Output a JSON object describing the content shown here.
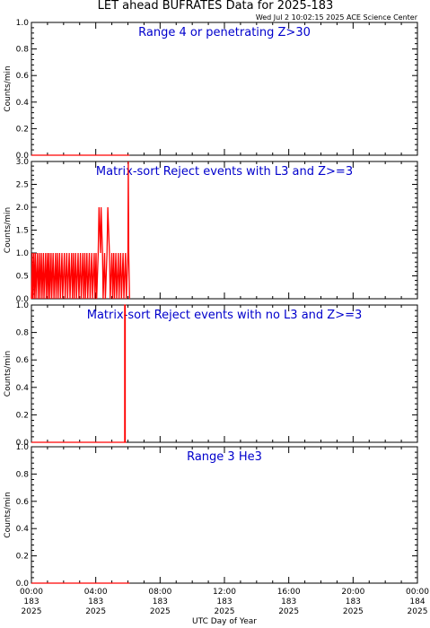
{
  "title": "LET ahead BUFRATES Data for 2025-183",
  "timestamp": "Wed Jul  2 10:02:15 2025 ACE Science Center",
  "xlabel": "UTC Day of Year",
  "colors": {
    "data": "#ff0000",
    "annotation": "#0000cc",
    "axes": "#000000"
  },
  "chart_data": [
    {
      "type": "line",
      "title": "Range 4 or   penetrating Z>30",
      "ylabel": "Counts/min",
      "ylim": [
        0,
        1
      ],
      "yticks": [
        0,
        0.2,
        0.4,
        0.6,
        0.8,
        1.0
      ],
      "ytick_labels": [
        "0.0",
        "0.2",
        "0.4",
        "0.6",
        "0.8",
        "1.0"
      ],
      "xlim_hours": [
        0,
        24
      ],
      "series": [
        {
          "x": [
            0.0,
            6.1
          ],
          "y": [
            0,
            0
          ]
        }
      ]
    },
    {
      "type": "line",
      "title": "Matrix-sort Reject events with L3 and Z>=3",
      "ylabel": "Counts/min",
      "ylim": [
        0,
        3
      ],
      "yticks": [
        0,
        0.5,
        1.0,
        1.5,
        2.0,
        2.5,
        3.0
      ],
      "ytick_labels": [
        "0.0",
        "0.5",
        "1.0",
        "1.5",
        "2.0",
        "2.5",
        "3.0"
      ],
      "xlim_hours": [
        0,
        24
      ],
      "series": [
        {
          "x": [
            0.0,
            0.05,
            0.08,
            0.15,
            0.18,
            0.25,
            0.28,
            0.38,
            0.42,
            0.5,
            0.53,
            0.62,
            0.66,
            0.75,
            0.78,
            0.88,
            0.92,
            1.0,
            1.03,
            1.1,
            1.14,
            1.22,
            1.26,
            1.35,
            1.4,
            1.5,
            1.53,
            1.62,
            1.66,
            1.75,
            1.8,
            1.9,
            1.94,
            2.05,
            2.1,
            2.2,
            2.25,
            2.35,
            2.4,
            2.5,
            2.55,
            2.62,
            2.66,
            2.75,
            2.8,
            2.9,
            2.95,
            3.05,
            3.1,
            3.2,
            3.25,
            3.32,
            3.36,
            3.45,
            3.5,
            3.6,
            3.65,
            3.75,
            3.8,
            3.9,
            3.95,
            4.02,
            4.06,
            4.15,
            4.2,
            4.3,
            4.33,
            4.42,
            4.46,
            4.55,
            4.6,
            4.7,
            4.75,
            4.85,
            4.9,
            5.0,
            5.05,
            5.12,
            5.16,
            5.25,
            5.3,
            5.4,
            5.45,
            5.55,
            5.6,
            5.7,
            5.75,
            5.85,
            5.9,
            6.0,
            6.02,
            6.05,
            6.1
          ],
          "y": [
            0,
            1,
            0,
            1,
            0,
            1,
            0,
            1,
            0,
            1,
            0,
            1,
            0,
            1,
            0,
            1,
            0,
            1,
            0,
            1,
            0,
            1,
            0,
            1,
            0,
            1,
            0,
            1,
            0,
            1,
            0,
            1,
            0,
            1,
            0,
            1,
            0,
            1,
            0,
            1,
            0,
            1,
            0,
            1,
            0,
            1,
            0,
            1,
            0,
            1,
            0,
            1,
            0,
            1,
            0,
            1,
            0,
            1,
            0,
            1,
            0,
            1,
            0,
            1,
            2,
            1,
            2,
            1,
            0,
            1,
            0,
            1,
            2,
            1,
            0,
            1,
            0,
            1,
            0,
            1,
            0,
            1,
            0,
            1,
            0,
            1,
            0,
            1,
            0,
            1,
            3,
            1,
            0
          ]
        }
      ]
    },
    {
      "type": "line",
      "title": "Matrix-sort Reject events with no L3 and Z>=3",
      "ylabel": "Counts/min",
      "ylim": [
        0,
        1
      ],
      "yticks": [
        0,
        0.2,
        0.4,
        0.6,
        0.8,
        1.0
      ],
      "ytick_labels": [
        "0.0",
        "0.2",
        "0.4",
        "0.6",
        "0.8",
        "1.0"
      ],
      "xlim_hours": [
        0,
        24
      ],
      "series": [
        {
          "x": [
            0.0,
            5.8,
            5.8,
            5.83,
            5.83,
            5.9
          ],
          "y": [
            0,
            0,
            1,
            1,
            0,
            0
          ]
        }
      ]
    },
    {
      "type": "line",
      "title": "Range 3 He3",
      "ylabel": "Counts/min",
      "ylim": [
        0,
        1
      ],
      "yticks": [
        0,
        0.2,
        0.4,
        0.6,
        0.8,
        1.0
      ],
      "ytick_labels": [
        "0.0",
        "0.2",
        "0.4",
        "0.6",
        "0.8",
        "1.0"
      ],
      "xlim_hours": [
        0,
        24
      ],
      "series": [
        {
          "x": [
            0.0,
            6.1
          ],
          "y": [
            0,
            0
          ]
        }
      ]
    }
  ],
  "x_ticks": [
    {
      "hour": 0,
      "time": "00:00",
      "doy": "183",
      "year": "2025"
    },
    {
      "hour": 4,
      "time": "04:00",
      "doy": "183",
      "year": "2025"
    },
    {
      "hour": 8,
      "time": "08:00",
      "doy": "183",
      "year": "2025"
    },
    {
      "hour": 12,
      "time": "12:00",
      "doy": "183",
      "year": "2025"
    },
    {
      "hour": 16,
      "time": "16:00",
      "doy": "183",
      "year": "2025"
    },
    {
      "hour": 20,
      "time": "20:00",
      "doy": "183",
      "year": "2025"
    },
    {
      "hour": 24,
      "time": "00:00",
      "doy": "184",
      "year": "2025"
    }
  ]
}
